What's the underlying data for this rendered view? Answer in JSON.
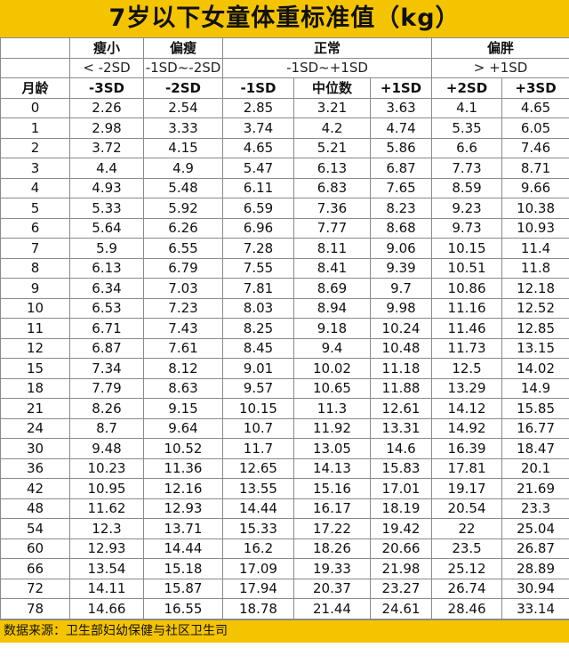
{
  "title": "7岁以下女童体重标准值（kg）",
  "header": {
    "groups": {
      "thin": "瘦小",
      "slim": "偏瘦",
      "normal": "正常",
      "chubby": "偏胖"
    },
    "ranges": {
      "thin": "< -2SD",
      "slim": "-1SD~-2SD",
      "normal": "-1SD~+1SD",
      "chubby": "> +1SD"
    },
    "columns": [
      "月龄",
      "-3SD",
      "-2SD",
      "-1SD",
      "中位数",
      "+1SD",
      "+2SD",
      "+3SD"
    ]
  },
  "rows": [
    [
      "0",
      "2.26",
      "2.54",
      "2.85",
      "3.21",
      "3.63",
      "4.1",
      "4.65"
    ],
    [
      "1",
      "2.98",
      "3.33",
      "3.74",
      "4.2",
      "4.74",
      "5.35",
      "6.05"
    ],
    [
      "2",
      "3.72",
      "4.15",
      "4.65",
      "5.21",
      "5.86",
      "6.6",
      "7.46"
    ],
    [
      "3",
      "4.4",
      "4.9",
      "5.47",
      "6.13",
      "6.87",
      "7.73",
      "8.71"
    ],
    [
      "4",
      "4.93",
      "5.48",
      "6.11",
      "6.83",
      "7.65",
      "8.59",
      "9.66"
    ],
    [
      "5",
      "5.33",
      "5.92",
      "6.59",
      "7.36",
      "8.23",
      "9.23",
      "10.38"
    ],
    [
      "6",
      "5.64",
      "6.26",
      "6.96",
      "7.77",
      "8.68",
      "9.73",
      "10.93"
    ],
    [
      "7",
      "5.9",
      "6.55",
      "7.28",
      "8.11",
      "9.06",
      "10.15",
      "11.4"
    ],
    [
      "8",
      "6.13",
      "6.79",
      "7.55",
      "8.41",
      "9.39",
      "10.51",
      "11.8"
    ],
    [
      "9",
      "6.34",
      "7.03",
      "7.81",
      "8.69",
      "9.7",
      "10.86",
      "12.18"
    ],
    [
      "10",
      "6.53",
      "7.23",
      "8.03",
      "8.94",
      "9.98",
      "11.16",
      "12.52"
    ],
    [
      "11",
      "6.71",
      "7.43",
      "8.25",
      "9.18",
      "10.24",
      "11.46",
      "12.85"
    ],
    [
      "12",
      "6.87",
      "7.61",
      "8.45",
      "9.4",
      "10.48",
      "11.73",
      "13.15"
    ],
    [
      "15",
      "7.34",
      "8.12",
      "9.01",
      "10.02",
      "11.18",
      "12.5",
      "14.02"
    ],
    [
      "18",
      "7.79",
      "8.63",
      "9.57",
      "10.65",
      "11.88",
      "13.29",
      "14.9"
    ],
    [
      "21",
      "8.26",
      "9.15",
      "10.15",
      "11.3",
      "12.61",
      "14.12",
      "15.85"
    ],
    [
      "24",
      "8.7",
      "9.64",
      "10.7",
      "11.92",
      "13.31",
      "14.92",
      "16.77"
    ],
    [
      "30",
      "9.48",
      "10.52",
      "11.7",
      "13.05",
      "14.6",
      "16.39",
      "18.47"
    ],
    [
      "36",
      "10.23",
      "11.36",
      "12.65",
      "14.13",
      "15.83",
      "17.81",
      "20.1"
    ],
    [
      "42",
      "10.95",
      "12.16",
      "13.55",
      "15.16",
      "17.01",
      "19.17",
      "21.69"
    ],
    [
      "48",
      "11.62",
      "12.93",
      "14.44",
      "16.17",
      "18.19",
      "20.54",
      "23.3"
    ],
    [
      "54",
      "12.3",
      "13.71",
      "15.33",
      "17.22",
      "19.42",
      "22",
      "25.04"
    ],
    [
      "60",
      "12.93",
      "14.44",
      "16.2",
      "18.26",
      "20.66",
      "23.5",
      "26.87"
    ],
    [
      "66",
      "13.54",
      "15.18",
      "17.09",
      "19.33",
      "21.98",
      "25.12",
      "28.89"
    ],
    [
      "72",
      "14.11",
      "15.87",
      "17.94",
      "20.37",
      "23.27",
      "26.74",
      "30.94"
    ],
    [
      "78",
      "14.66",
      "16.55",
      "18.78",
      "21.44",
      "24.61",
      "28.46",
      "33.14"
    ]
  ],
  "footer": "数据来源：卫生部妇幼保健与社区卫生司",
  "colors": {
    "accent": "#f5c400",
    "grid": "#8a8a8a"
  }
}
